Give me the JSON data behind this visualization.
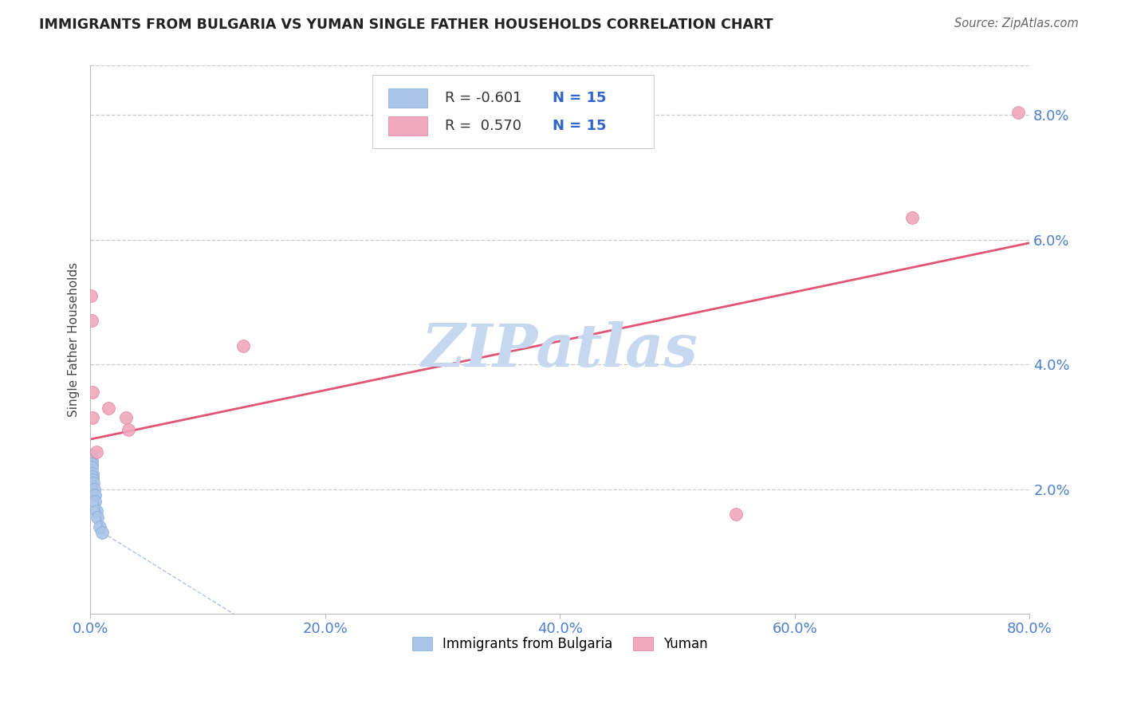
{
  "title": "IMMIGRANTS FROM BULGARIA VS YUMAN SINGLE FATHER HOUSEHOLDS CORRELATION CHART",
  "source": "Source: ZipAtlas.com",
  "ylabel": "Single Father Households",
  "legend_label_blue": "Immigrants from Bulgaria",
  "legend_label_pink": "Yuman",
  "xlim": [
    0.0,
    80.0
  ],
  "ylim": [
    0.0,
    8.8
  ],
  "yticks": [
    2.0,
    4.0,
    6.0,
    8.0
  ],
  "xticks": [
    0.0,
    20.0,
    40.0,
    60.0,
    80.0
  ],
  "blue_points_x": [
    0.05,
    0.08,
    0.1,
    0.12,
    0.15,
    0.18,
    0.2,
    0.25,
    0.3,
    0.35,
    0.4,
    0.5,
    0.6,
    0.8,
    1.0
  ],
  "blue_points_y": [
    2.55,
    2.45,
    2.4,
    2.35,
    2.25,
    2.2,
    2.15,
    2.1,
    2.0,
    1.9,
    1.8,
    1.65,
    1.55,
    1.4,
    1.3
  ],
  "pink_points_x": [
    0.05,
    0.1,
    0.15,
    0.2,
    0.5,
    1.5,
    3.0,
    3.2,
    13.0,
    55.0,
    70.0,
    79.0
  ],
  "pink_points_y": [
    5.1,
    4.7,
    3.55,
    3.15,
    2.6,
    3.3,
    3.15,
    2.95,
    4.3,
    1.6,
    6.35,
    8.05
  ],
  "blue_line_color": "#3366cc",
  "pink_line_color": "#e05575",
  "blue_dot_facecolor": "#aac4e8",
  "blue_dot_edgecolor": "#7aaad0",
  "pink_dot_facecolor": "#f0a8bc",
  "pink_dot_edgecolor": "#e07898",
  "dot_size": 130,
  "watermark_color": "#c5d8f0",
  "background_color": "#ffffff",
  "grid_color": "#cccccc",
  "pink_line_x_start": 0.0,
  "pink_line_x_end": 80.0,
  "pink_line_y_start": 2.8,
  "pink_line_y_end": 5.95,
  "blue_line_x_start": 0.0,
  "blue_line_x_end": 1.05,
  "blue_line_y_start": 2.6,
  "blue_line_y_end": 1.3,
  "blue_dash_x_start": 1.05,
  "blue_dash_x_end": 25.0,
  "blue_dash_y_start": 1.3,
  "blue_dash_y_end": -1.5
}
